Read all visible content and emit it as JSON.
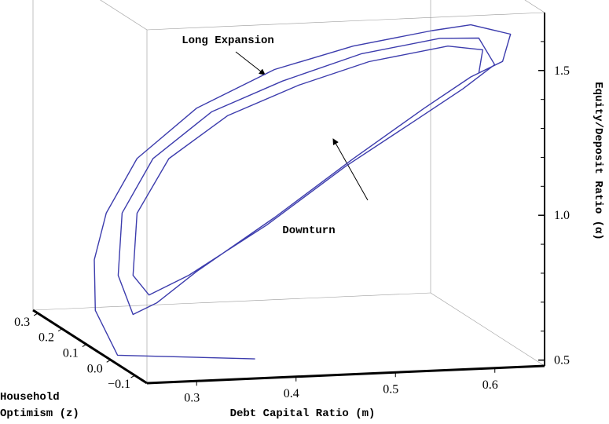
{
  "chart_data": {
    "type": "line3d",
    "xlabel": "Debt Capital Ratio (m)",
    "zlabel": [
      "Household",
      "Optimism (z)"
    ],
    "ylabel": "Equity/Deposit Ratio (α)",
    "annotations": [
      "Long Expansion",
      "Downturn"
    ],
    "xlim": [
      0.25,
      0.65
    ],
    "xticks": [
      0.3,
      0.4,
      0.5,
      0.6
    ],
    "zlim": [
      -0.15,
      0.32
    ],
    "zticks": [
      {
        "value": -0.1,
        "label": "−0.1"
      },
      {
        "value": 0,
        "label": "0.0"
      },
      0.1,
      0.2,
      0.3
    ],
    "ylim": [
      0.48,
      1.7
    ],
    "yticks": [
      0.5,
      {
        "value": 1,
        "label": "1.0"
      },
      1.5
    ],
    "yminorticks": [
      0.6,
      0.7,
      0.8,
      0.9,
      1.1,
      1.2,
      1.3,
      1.4,
      1.6
    ],
    "color": "#3c3cad",
    "x": [
      0.371,
      0.257,
      0.259,
      0.258,
      0.27,
      0.301,
      0.361,
      0.415,
      0.494,
      0.549,
      0.588,
      0.628,
      0.62,
      0.588,
      0.541,
      0.494,
      0.415,
      0.361,
      0.321,
      0.297,
      0.282,
      0.286,
      0.317,
      0.376,
      0.423,
      0.502,
      0.557,
      0.596,
      0.612,
      0.58,
      0.533,
      0.486,
      0.407,
      0.353,
      0.313,
      0.297,
      0.301,
      0.333,
      0.392,
      0.439,
      0.51,
      0.565,
      0.6,
      0.596
    ],
    "z": [
      -0.1,
      0.0,
      0.1,
      0.1,
      0.1,
      0.1,
      0.1,
      0.0,
      0.0,
      -0.1,
      -0.1,
      -0.1,
      -0.1,
      -0.1,
      -0.1,
      0.0,
      0.0,
      0.1,
      0.1,
      0.1,
      0.1,
      0.1,
      0.1,
      0.1,
      0.0,
      0.0,
      -0.1,
      -0.1,
      -0.1,
      -0.1,
      -0.1,
      0.0,
      0.0,
      0.1,
      0.1,
      0.1,
      0.1,
      0.1,
      0.1,
      0.0,
      0.0,
      -0.1,
      -0.1,
      -0.1
    ],
    "values": [
      0.519,
      0.495,
      0.596,
      0.771,
      0.93,
      1.114,
      1.279,
      1.458,
      1.527,
      1.626,
      1.64,
      1.602,
      1.509,
      1.46,
      1.359,
      1.138,
      0.947,
      0.715,
      0.613,
      0.576,
      0.713,
      0.928,
      1.111,
      1.264,
      1.417,
      1.499,
      1.598,
      1.593,
      1.499,
      1.42,
      1.32,
      1.112,
      0.922,
      0.703,
      0.641,
      0.711,
      0.925,
      1.109,
      1.248,
      1.4,
      1.471,
      1.57,
      1.552,
      1.472
    ]
  }
}
